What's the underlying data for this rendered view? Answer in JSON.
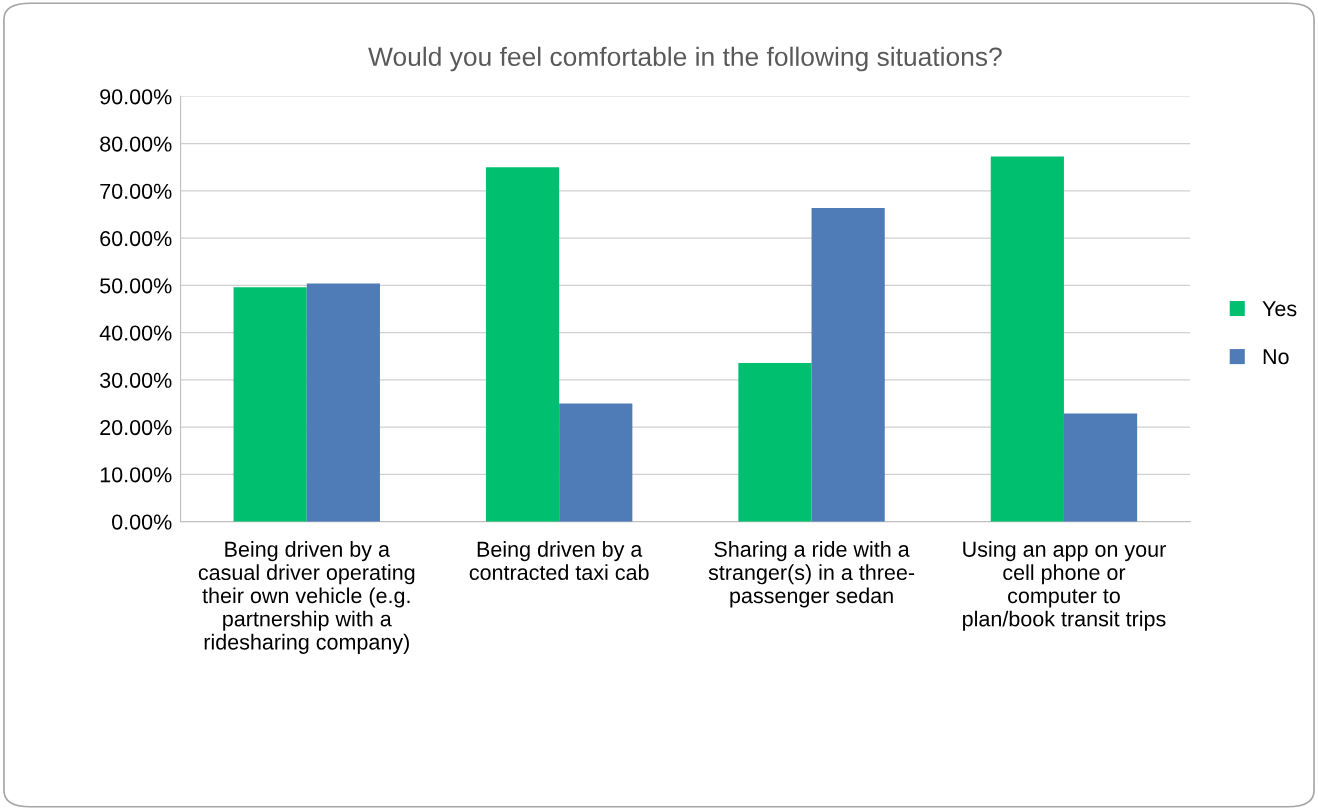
{
  "chart_data": {
    "type": "bar",
    "title": "Would you feel comfortable in the following situations?",
    "categories": [
      "Being driven by a\ncasual driver operating\ntheir own vehicle (e.g.\npartnership with a\nridesharing company)",
      "Being driven by a\ncontracted taxi cab",
      "Sharing a ride with a\nstranger(s) in a three-\npassenger sedan",
      "Using an app on your\ncell phone or\ncomputer to\nplan/book transit trips"
    ],
    "series": [
      {
        "name": "Yes",
        "color": "#00bf6f",
        "values": [
          49.6,
          75.0,
          33.6,
          77.3
        ]
      },
      {
        "name": "No",
        "color": "#4f7bb6",
        "values": [
          50.4,
          25.0,
          66.4,
          22.9
        ]
      }
    ],
    "ylim": [
      0,
      90
    ],
    "yticks": [
      {
        "value": 0,
        "label": "0.00%"
      },
      {
        "value": 10,
        "label": "10.00%"
      },
      {
        "value": 20,
        "label": "20.00%"
      },
      {
        "value": 30,
        "label": "30.00%"
      },
      {
        "value": 40,
        "label": "40.00%"
      },
      {
        "value": 50,
        "label": "50.00%"
      },
      {
        "value": 60,
        "label": "60.00%"
      },
      {
        "value": 70,
        "label": "70.00%"
      },
      {
        "value": 80,
        "label": "80.00%"
      },
      {
        "value": 90,
        "label": "90.00%"
      }
    ],
    "grid": "y",
    "legend": "right"
  }
}
